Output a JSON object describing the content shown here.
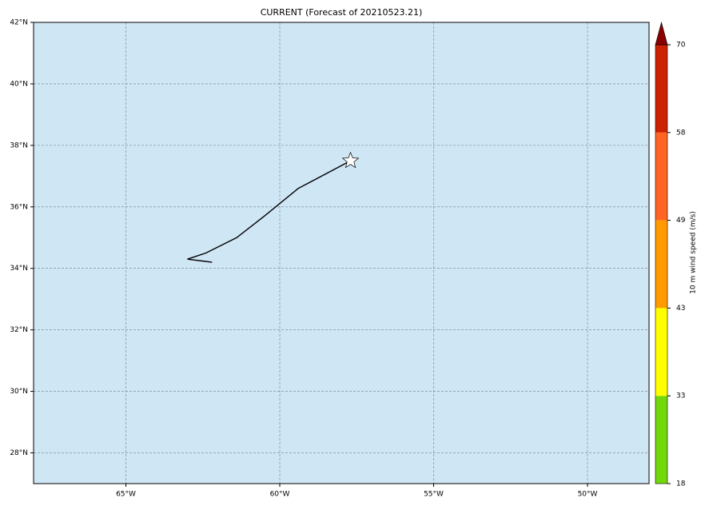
{
  "title": "CURRENT (Forecast of 20210523.21)",
  "map": {
    "xlim": [
      -68,
      -48
    ],
    "ylim": [
      27,
      42
    ],
    "xticks": [
      {
        "value": -65,
        "label": "65°W"
      },
      {
        "value": -60,
        "label": "60°W"
      },
      {
        "value": -55,
        "label": "55°W"
      },
      {
        "value": -50,
        "label": "50°W"
      }
    ],
    "yticks": [
      {
        "value": 28,
        "label": "28°N"
      },
      {
        "value": 30,
        "label": "30°N"
      },
      {
        "value": 32,
        "label": "32°N"
      },
      {
        "value": 34,
        "label": "34°N"
      },
      {
        "value": 36,
        "label": "36°N"
      },
      {
        "value": 38,
        "label": "38°N"
      },
      {
        "value": 40,
        "label": "40°N"
      },
      {
        "value": 42,
        "label": "42°N"
      }
    ],
    "ocean_color": "#cfe6f5",
    "track": {
      "lon": [
        -62.2,
        -63.0,
        -62.4,
        -61.4,
        -60.5,
        -59.4,
        -57.7
      ],
      "lat": [
        34.2,
        34.3,
        34.5,
        35.0,
        35.7,
        36.6,
        37.5
      ],
      "color": "#000000"
    }
  },
  "colorbar": {
    "label": "10 m wind speed (m/s)",
    "levels": [
      18,
      33,
      43,
      49,
      58,
      70
    ],
    "colors": [
      "#72d80c",
      "#ffff00",
      "#ff9b00",
      "#ff6425",
      "#cc2200"
    ],
    "extend_color": "#8b0000"
  }
}
